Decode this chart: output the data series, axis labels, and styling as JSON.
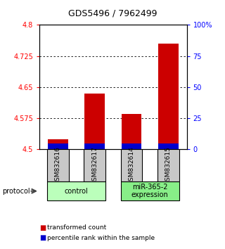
{
  "title": "GDS5496 / 7962499",
  "samples": [
    "GSM832616",
    "GSM832617",
    "GSM832614",
    "GSM832615"
  ],
  "red_values": [
    4.525,
    4.635,
    4.585,
    4.755
  ],
  "blue_values": [
    4.515,
    4.515,
    4.515,
    4.515
  ],
  "bar_bottom": 4.5,
  "ylim_left": [
    4.5,
    4.8
  ],
  "ylim_right": [
    0,
    100
  ],
  "yticks_left": [
    4.5,
    4.575,
    4.65,
    4.725,
    4.8
  ],
  "yticks_right": [
    0,
    25,
    50,
    75,
    100
  ],
  "ytick_labels_left": [
    "4.5",
    "4.575",
    "4.65",
    "4.725",
    "4.8"
  ],
  "ytick_labels_right": [
    "0",
    "25",
    "50",
    "75",
    "100%"
  ],
  "gridlines": [
    4.575,
    4.65,
    4.725
  ],
  "groups": [
    {
      "label": "control",
      "samples": [
        0,
        1
      ],
      "color": "#bbffbb"
    },
    {
      "label": "miR-365-2\nexpression",
      "samples": [
        2,
        3
      ],
      "color": "#88ee88"
    }
  ],
  "protocol_label": "protocol",
  "legend_red": "transformed count",
  "legend_blue": "percentile rank within the sample",
  "bar_width": 0.55,
  "red_color": "#cc0000",
  "blue_color": "#0000cc",
  "sample_box_color": "#c8c8c8",
  "title_fontsize": 9,
  "tick_fontsize": 7,
  "label_fontsize": 7
}
